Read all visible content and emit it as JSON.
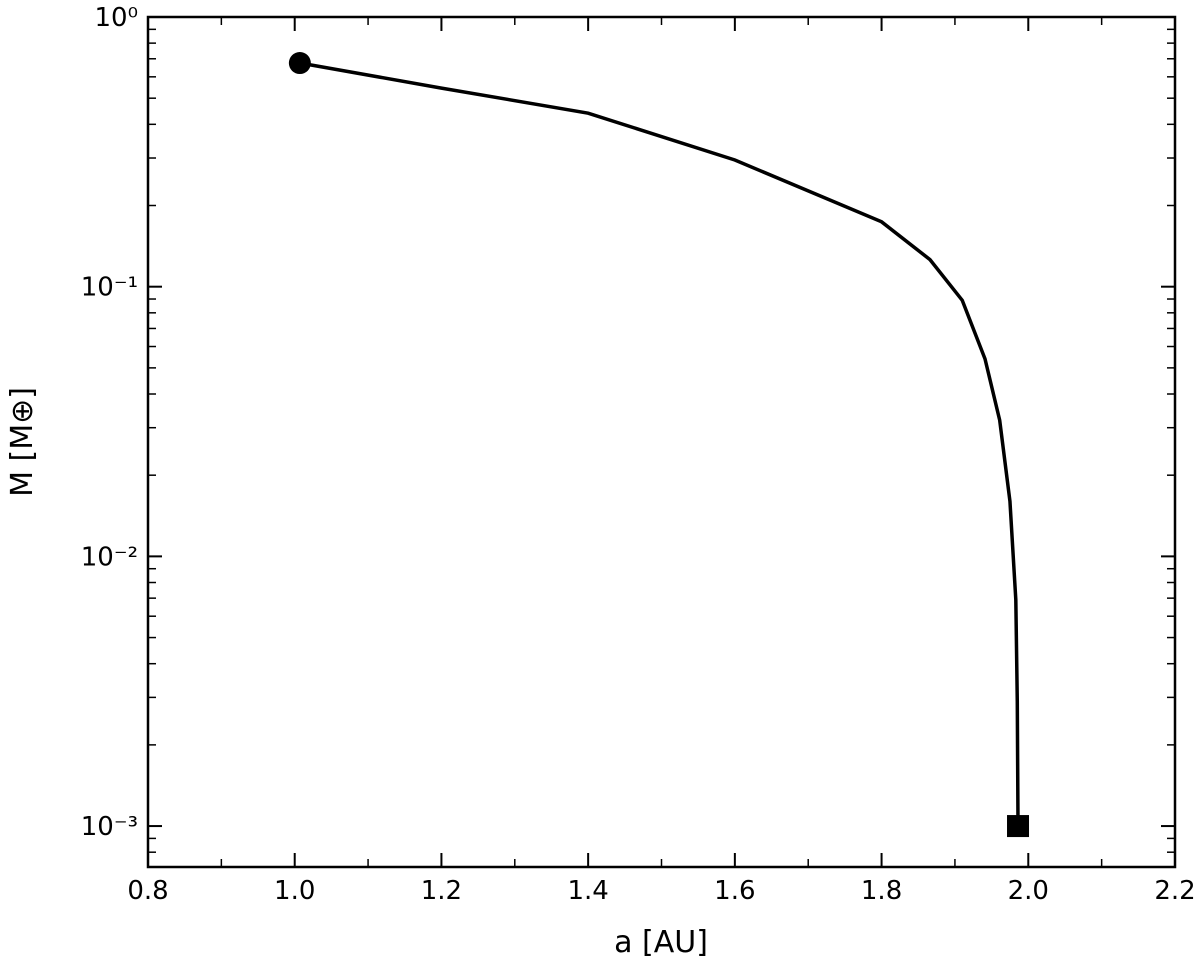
{
  "chart_data": {
    "type": "line",
    "xlabel": "a [AU]",
    "ylabel": "M [M⊕]",
    "x": [
      1.007,
      1.2,
      1.4,
      1.6,
      1.8,
      1.866,
      1.91,
      1.941,
      1.961,
      1.975,
      1.983,
      1.985,
      1.986
    ],
    "series": [
      {
        "color": "#000000",
        "values": [
          0.675,
          0.545,
          0.44,
          0.295,
          0.174,
          0.126,
          0.089,
          0.054,
          0.032,
          0.016,
          0.0069,
          0.0029,
          0.001
        ]
      }
    ],
    "start_marker": "circle",
    "end_marker": "square",
    "xlim": [
      0.8,
      2.2
    ],
    "xticks": [
      0.8,
      {
        "value": 1,
        "label": "1.0"
      },
      1.2,
      1.4,
      1.6,
      1.8,
      {
        "value": 2,
        "label": "2.0"
      },
      2.2
    ],
    "xminorticks": [
      0.9,
      1.1,
      1.3,
      1.5,
      1.7,
      1.9,
      2.1
    ],
    "yscale": "log",
    "ylim": [
      0.000705,
      1
    ],
    "yticks": [
      {
        "value": 1,
        "label": "10⁰"
      },
      {
        "value": 0.1,
        "label": "10⁻¹"
      },
      {
        "value": 0.01,
        "label": "10⁻²"
      },
      {
        "value": 0.001,
        "label": "10⁻³"
      }
    ],
    "yminorticks": [
      0.9,
      0.8,
      0.7,
      0.6,
      0.5,
      0.4,
      0.3,
      0.2,
      0.09,
      0.08,
      0.07,
      0.06,
      0.05,
      0.04,
      0.03,
      0.02,
      0.009,
      0.008,
      0.007,
      0.006,
      0.005,
      0.004,
      0.003,
      0.002,
      0.0009,
      0.0008
    ]
  }
}
